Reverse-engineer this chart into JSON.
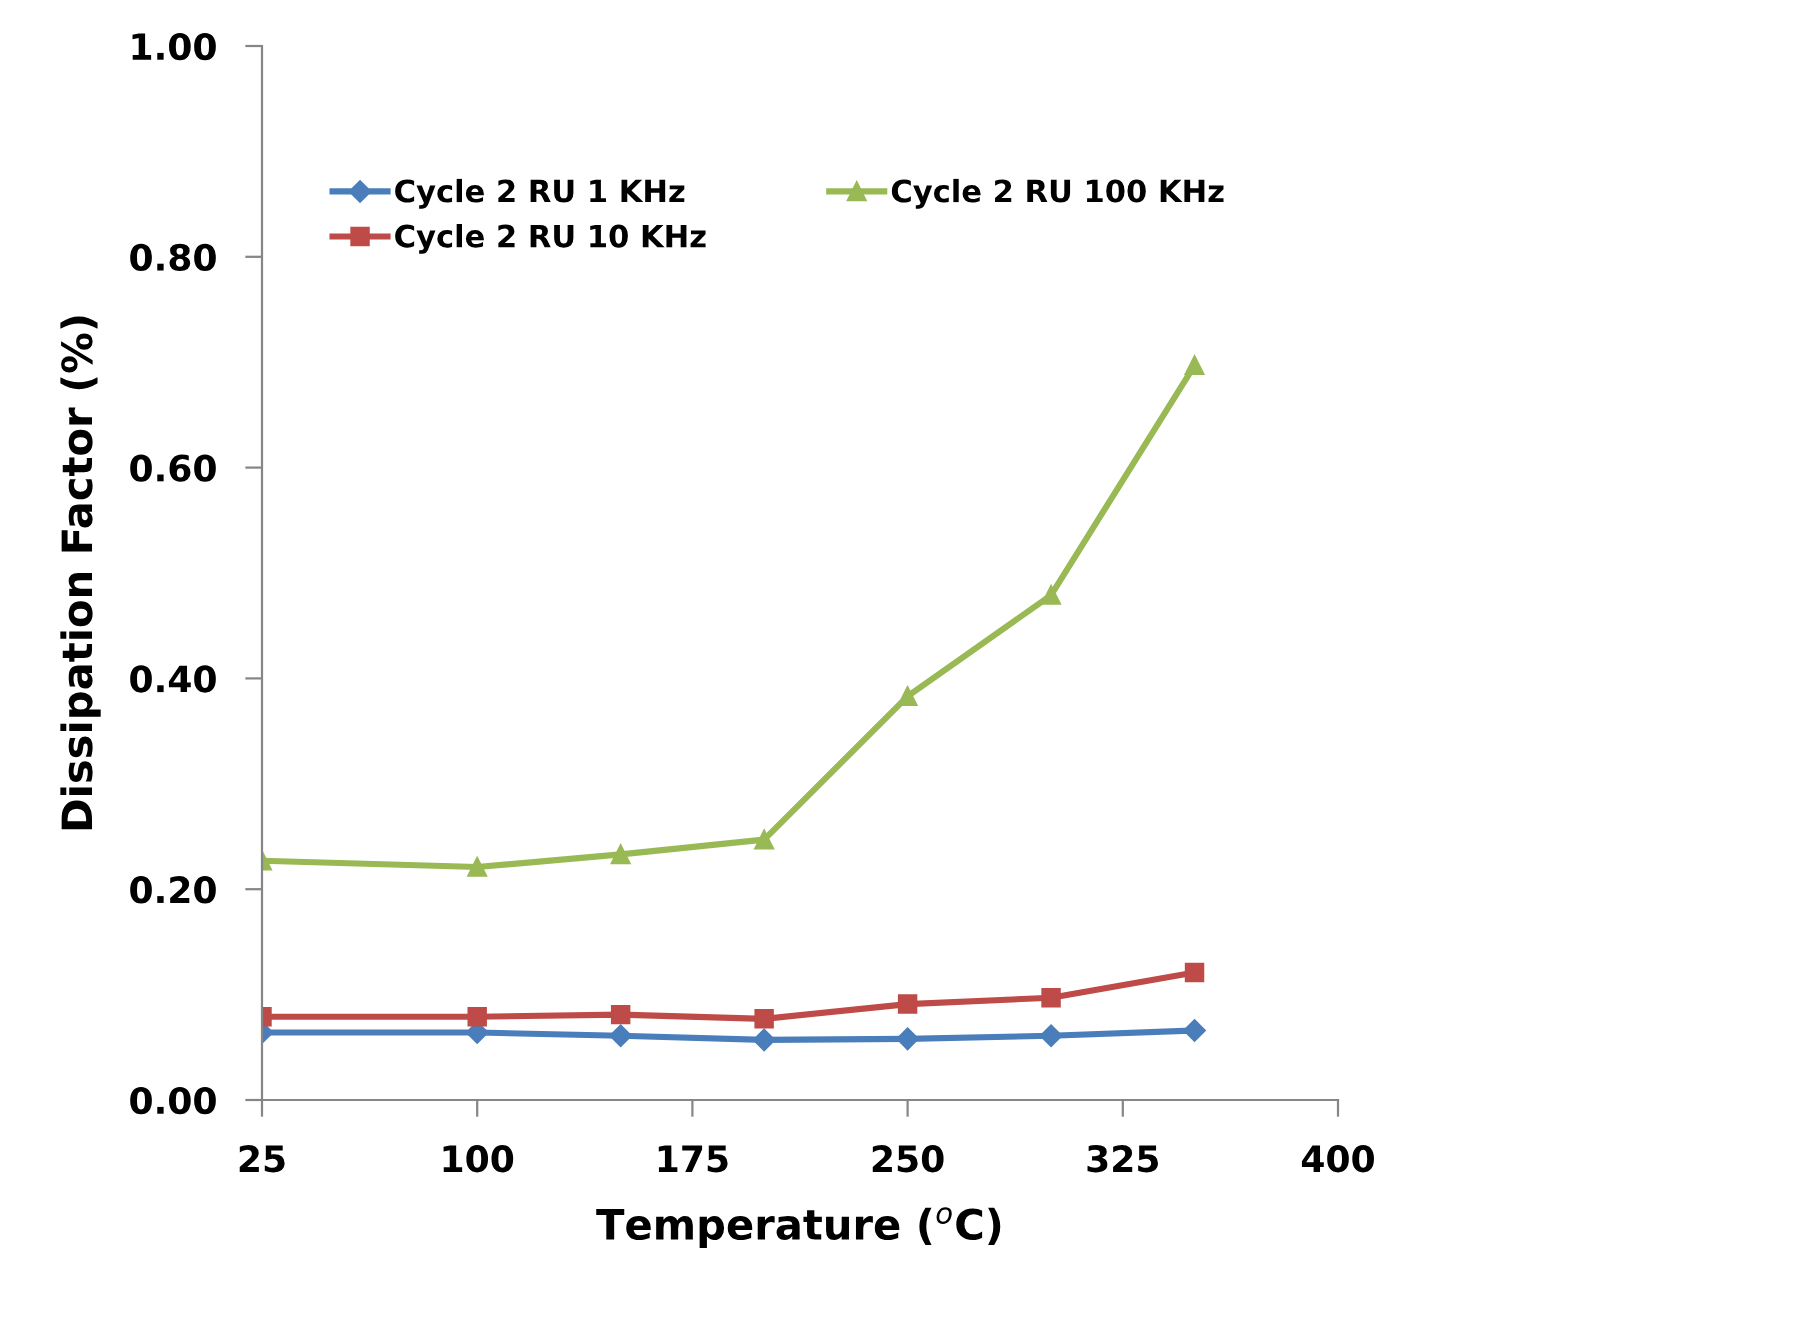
{
  "chart_data": {
    "type": "line",
    "xlabel": "Temperature ($^{o}$C)",
    "ylabel": "Dissipation Factor (%)",
    "x": [
      25,
      100,
      150,
      200,
      250,
      300,
      350
    ],
    "series": [
      {
        "name": "Cycle 2 RU 1 KHz",
        "color": "#4a7ebb",
        "marker": "diamond",
        "values": [
          0.064,
          0.064,
          0.061,
          0.057,
          0.058,
          0.061,
          0.066
        ]
      },
      {
        "name": "Cycle 2 RU 10 KHz",
        "color": "#be4b48",
        "marker": "square",
        "values": [
          0.079,
          0.079,
          0.081,
          0.077,
          0.091,
          0.097,
          0.121
        ]
      },
      {
        "name": "Cycle 2 RU 100 KHz",
        "color": "#98b954",
        "marker": "triangle",
        "values": [
          0.227,
          0.221,
          0.233,
          0.247,
          0.383,
          0.479,
          0.697
        ]
      }
    ],
    "xlim": [
      25,
      400
    ],
    "xticks": [
      25,
      100,
      175,
      250,
      325,
      400
    ],
    "ylim": [
      0,
      1
    ],
    "yticks": [
      {
        "value": 0,
        "label": "0.00"
      },
      {
        "value": 0.2,
        "label": "0.20"
      },
      {
        "value": 0.4,
        "label": "0.40"
      },
      {
        "value": 0.6,
        "label": "0.60"
      },
      {
        "value": 0.8,
        "label": "0.80"
      },
      {
        "value": 1,
        "label": "1.00"
      }
    ],
    "grid": false,
    "legend": "top left",
    "line_style": "solid"
  }
}
